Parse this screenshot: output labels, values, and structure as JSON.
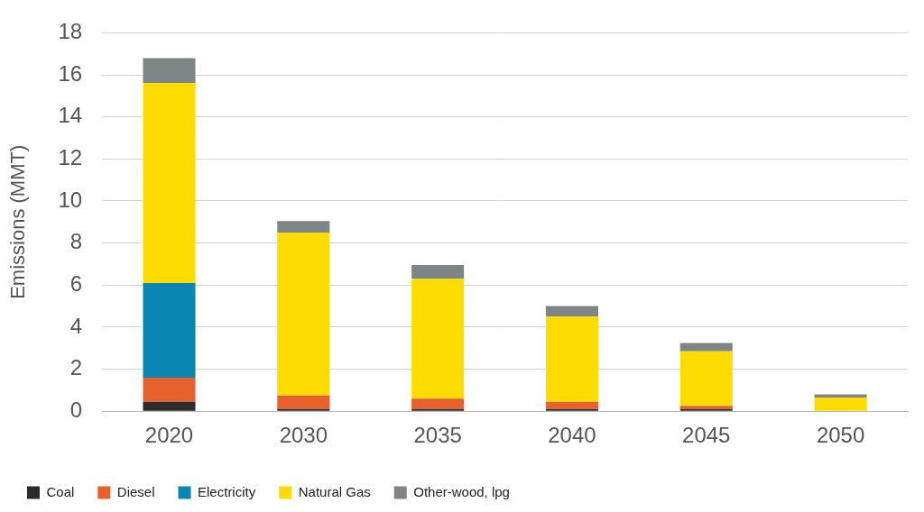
{
  "chart_data": {
    "type": "bar",
    "stacked": true,
    "grid": true,
    "legend": "bottom",
    "y_label": "Emissions (MMT)",
    "categories": [
      "2020",
      "2030",
      "2035",
      "2040",
      "2045",
      "2050"
    ],
    "series": [
      {
        "name": "Coal",
        "color": "#2e2a29",
        "values": [
          0.45,
          0.1,
          0.1,
          0.1,
          0.1,
          0
        ]
      },
      {
        "name": "Diesel",
        "color": "#e8602c",
        "values": [
          1.15,
          0.65,
          0.5,
          0.35,
          0.15,
          0
        ]
      },
      {
        "name": "Electricity",
        "color": "#0a86b2",
        "values": [
          4.5,
          0,
          0,
          0,
          0,
          0
        ]
      },
      {
        "name": "Natural Gas",
        "color": "#fedc00",
        "values": [
          9.5,
          7.75,
          5.7,
          4.05,
          2.6,
          0.65
        ]
      },
      {
        "name": "Other-wood, lpg",
        "color": "#7d8587",
        "values": [
          1.2,
          0.55,
          0.65,
          0.5,
          0.4,
          0.15
        ]
      }
    ],
    "ylim": [
      0,
      18
    ],
    "yticks": [
      0,
      2,
      4,
      6,
      8,
      10,
      12,
      14,
      16,
      18
    ]
  }
}
